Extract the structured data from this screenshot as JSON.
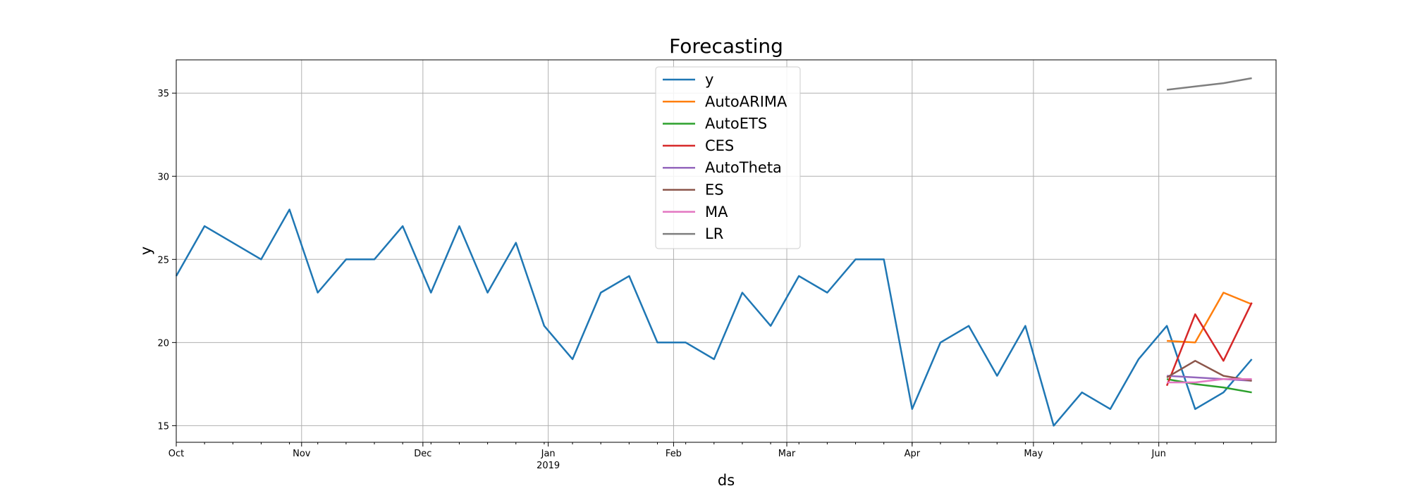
{
  "chart_data": {
    "type": "line",
    "title": "Forecasting",
    "xlabel": "ds",
    "ylabel": "y",
    "grid": true,
    "legend_position": "top-center",
    "x_range": [
      "2018-10-01",
      "2019-06-30"
    ],
    "ylim": [
      14,
      37
    ],
    "y_ticks": [
      15,
      20,
      25,
      30,
      35
    ],
    "x_ticks": [
      {
        "date": "2018-10-01",
        "label": "Oct",
        "sublabel": ""
      },
      {
        "date": "2018-11-01",
        "label": "Nov",
        "sublabel": ""
      },
      {
        "date": "2018-12-01",
        "label": "Dec",
        "sublabel": ""
      },
      {
        "date": "2019-01-01",
        "label": "Jan",
        "sublabel": "2019"
      },
      {
        "date": "2019-02-01",
        "label": "Feb",
        "sublabel": ""
      },
      {
        "date": "2019-03-01",
        "label": "Mar",
        "sublabel": ""
      },
      {
        "date": "2019-04-01",
        "label": "Apr",
        "sublabel": ""
      },
      {
        "date": "2019-05-01",
        "label": "May",
        "sublabel": ""
      },
      {
        "date": "2019-06-01",
        "label": "Jun",
        "sublabel": ""
      }
    ],
    "series": [
      {
        "name": "y",
        "color": "#1f77b4",
        "x": [
          "2018-10-01",
          "2018-10-08",
          "2018-10-15",
          "2018-10-22",
          "2018-10-29",
          "2018-11-05",
          "2018-11-12",
          "2018-11-19",
          "2018-11-26",
          "2018-12-03",
          "2018-12-10",
          "2018-12-17",
          "2018-12-24",
          "2018-12-31",
          "2019-01-07",
          "2019-01-14",
          "2019-01-21",
          "2019-01-28",
          "2019-02-04",
          "2019-02-11",
          "2019-02-18",
          "2019-02-25",
          "2019-03-04",
          "2019-03-11",
          "2019-03-18",
          "2019-03-25",
          "2019-04-01",
          "2019-04-08",
          "2019-04-15",
          "2019-04-22",
          "2019-04-29",
          "2019-05-06",
          "2019-05-13",
          "2019-05-20",
          "2019-05-27",
          "2019-06-03",
          "2019-06-10",
          "2019-06-17",
          "2019-06-24"
        ],
        "y": [
          24,
          27,
          26,
          25,
          28,
          23,
          25,
          25,
          27,
          23,
          27,
          23,
          26,
          21,
          19,
          23,
          24,
          20,
          20,
          19,
          23,
          21,
          24,
          23,
          25,
          25,
          16,
          20,
          21,
          18,
          21,
          15,
          17,
          16,
          19,
          21,
          16,
          17,
          19
        ]
      },
      {
        "name": "AutoARIMA",
        "color": "#ff7f0e",
        "x": [
          "2019-06-03",
          "2019-06-10",
          "2019-06-17",
          "2019-06-24"
        ],
        "y": [
          20.1,
          20.0,
          23.0,
          22.3
        ]
      },
      {
        "name": "AutoETS",
        "color": "#2ca02c",
        "x": [
          "2019-06-03",
          "2019-06-10",
          "2019-06-17",
          "2019-06-24"
        ],
        "y": [
          17.8,
          17.5,
          17.3,
          17.0
        ]
      },
      {
        "name": "CES",
        "color": "#d62728",
        "x": [
          "2019-06-03",
          "2019-06-10",
          "2019-06-17",
          "2019-06-24"
        ],
        "y": [
          17.4,
          21.7,
          18.9,
          22.4
        ]
      },
      {
        "name": "AutoTheta",
        "color": "#9467bd",
        "x": [
          "2019-06-03",
          "2019-06-10",
          "2019-06-17",
          "2019-06-24"
        ],
        "y": [
          18.0,
          17.9,
          17.8,
          17.7
        ]
      },
      {
        "name": "ES",
        "color": "#8c564b",
        "x": [
          "2019-06-03",
          "2019-06-10",
          "2019-06-17",
          "2019-06-24"
        ],
        "y": [
          17.9,
          18.9,
          18.0,
          17.7
        ]
      },
      {
        "name": "MA",
        "color": "#e377c2",
        "x": [
          "2019-06-03",
          "2019-06-10",
          "2019-06-17",
          "2019-06-24"
        ],
        "y": [
          17.6,
          17.6,
          17.8,
          17.8
        ]
      },
      {
        "name": "LR",
        "color": "#7f7f7f",
        "x": [
          "2019-06-03",
          "2019-06-10",
          "2019-06-17",
          "2019-06-24"
        ],
        "y": [
          35.2,
          35.4,
          35.6,
          35.9
        ]
      }
    ]
  }
}
